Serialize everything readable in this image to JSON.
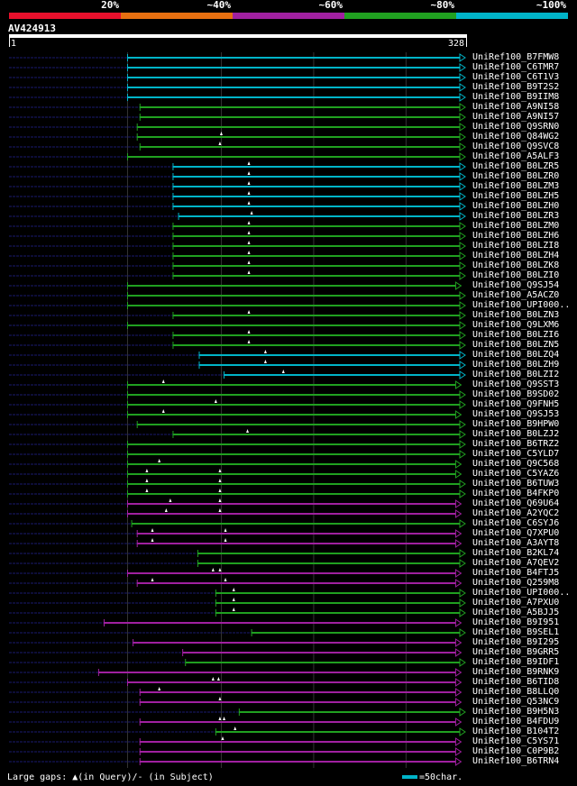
{
  "legend": {
    "segments": [
      {
        "label": "20%",
        "color": "#e8102c"
      },
      {
        "label": "~40%",
        "color": "#e87010"
      },
      {
        "label": "~60%",
        "color": "#a020a0"
      },
      {
        "label": "~80%",
        "color": "#20a020"
      },
      {
        "label": "~100%",
        "color": "#00b4c8"
      }
    ]
  },
  "query": {
    "name": "AV424913",
    "start_label": "1",
    "end_label": "328"
  },
  "footer": {
    "gaps_text": "Large gaps: ▲(in Query)/- (in Subject)",
    "scale_text": "=50char."
  },
  "chart_data": {
    "type": "alignment",
    "title": "AV424913",
    "xlim": [
      1,
      328
    ],
    "identity_classes": [
      "20%",
      "~40%",
      "~60%",
      "~80%",
      "~100%"
    ],
    "hits": [
      {
        "name": "UniRef100_B7FMW8",
        "start": 87,
        "end": 328,
        "identity": "~100%",
        "prefix_start": 1,
        "gaps": []
      },
      {
        "name": "UniRef100_C6TMR7",
        "start": 87,
        "end": 328,
        "identity": "~100%",
        "prefix_start": 1,
        "gaps": []
      },
      {
        "name": "UniRef100_C6T1V3",
        "start": 87,
        "end": 328,
        "identity": "~100%",
        "prefix_start": 1,
        "gaps": []
      },
      {
        "name": "UniRef100_B9T2S2",
        "start": 87,
        "end": 328,
        "identity": "~100%",
        "prefix_start": 1,
        "gaps": []
      },
      {
        "name": "UniRef100_B9IIM8",
        "start": 87,
        "end": 328,
        "identity": "~100%",
        "prefix_start": 1,
        "gaps": []
      },
      {
        "name": "UniRef100_A9NI58",
        "start": 96,
        "end": 328,
        "identity": "~80%",
        "prefix_start": 1,
        "gaps": []
      },
      {
        "name": "UniRef100_A9NI57",
        "start": 96,
        "end": 328,
        "identity": "~80%",
        "prefix_start": 1,
        "gaps": []
      },
      {
        "name": "UniRef100_Q9SRN0",
        "start": 94,
        "end": 328,
        "identity": "~80%",
        "prefix_start": 1,
        "gaps": []
      },
      {
        "name": "UniRef100_Q84WG2",
        "start": 94,
        "end": 328,
        "identity": "~80%",
        "prefix_start": 1,
        "gaps": [
          155
        ]
      },
      {
        "name": "UniRef100_Q9SVC8",
        "start": 96,
        "end": 328,
        "identity": "~80%",
        "prefix_start": 1,
        "gaps": [
          154
        ]
      },
      {
        "name": "UniRef100_A5ALF3",
        "start": 87,
        "end": 328,
        "identity": "~80%",
        "prefix_start": 1,
        "gaps": []
      },
      {
        "name": "UniRef100_B0LZR5",
        "start": 120,
        "end": 328,
        "identity": "~100%",
        "prefix_start": 1,
        "gaps": [
          175
        ]
      },
      {
        "name": "UniRef100_B0LZR0",
        "start": 120,
        "end": 328,
        "identity": "~100%",
        "prefix_start": 1,
        "gaps": [
          175
        ]
      },
      {
        "name": "UniRef100_B0LZM3",
        "start": 120,
        "end": 328,
        "identity": "~100%",
        "prefix_start": 1,
        "gaps": [
          175
        ]
      },
      {
        "name": "UniRef100_B0LZH5",
        "start": 120,
        "end": 328,
        "identity": "~100%",
        "prefix_start": 1,
        "gaps": [
          175
        ]
      },
      {
        "name": "UniRef100_B0LZH0",
        "start": 120,
        "end": 328,
        "identity": "~100%",
        "prefix_start": 1,
        "gaps": [
          175
        ]
      },
      {
        "name": "UniRef100_B0LZR3",
        "start": 124,
        "end": 328,
        "identity": "~100%",
        "prefix_start": 1,
        "gaps": [
          177
        ]
      },
      {
        "name": "UniRef100_B0LZM0",
        "start": 120,
        "end": 328,
        "identity": "~80%",
        "prefix_start": 1,
        "gaps": [
          175
        ]
      },
      {
        "name": "UniRef100_B0LZH6",
        "start": 120,
        "end": 328,
        "identity": "~80%",
        "prefix_start": 1,
        "gaps": [
          175
        ]
      },
      {
        "name": "UniRef100_B0LZI8",
        "start": 120,
        "end": 328,
        "identity": "~80%",
        "prefix_start": 1,
        "gaps": [
          175
        ]
      },
      {
        "name": "UniRef100_B0LZH4",
        "start": 120,
        "end": 328,
        "identity": "~80%",
        "prefix_start": 1,
        "gaps": [
          175
        ]
      },
      {
        "name": "UniRef100_B0LZK8",
        "start": 120,
        "end": 328,
        "identity": "~80%",
        "prefix_start": 1,
        "gaps": [
          175
        ]
      },
      {
        "name": "UniRef100_B0LZI0",
        "start": 120,
        "end": 328,
        "identity": "~80%",
        "prefix_start": 1,
        "gaps": [
          175
        ]
      },
      {
        "name": "UniRef100_Q9SJ54",
        "start": 87,
        "end": 325,
        "identity": "~80%",
        "prefix_start": 1,
        "gaps": []
      },
      {
        "name": "UniRef100_A5ACZ0",
        "start": 87,
        "end": 328,
        "identity": "~80%",
        "prefix_start": 1,
        "gaps": []
      },
      {
        "name": "UniRef100_UPI000..",
        "start": 87,
        "end": 328,
        "identity": "~80%",
        "prefix_start": 1,
        "gaps": []
      },
      {
        "name": "UniRef100_B0LZN3",
        "start": 120,
        "end": 328,
        "identity": "~80%",
        "prefix_start": 1,
        "gaps": [
          175
        ]
      },
      {
        "name": "UniRef100_Q9LXM6",
        "start": 87,
        "end": 328,
        "identity": "~80%",
        "prefix_start": 1,
        "gaps": []
      },
      {
        "name": "UniRef100_B0LZI6",
        "start": 120,
        "end": 328,
        "identity": "~80%",
        "prefix_start": 1,
        "gaps": [
          175
        ]
      },
      {
        "name": "UniRef100_B0LZN5",
        "start": 120,
        "end": 328,
        "identity": "~80%",
        "prefix_start": 1,
        "gaps": [
          175
        ]
      },
      {
        "name": "UniRef100_B0LZQ4",
        "start": 139,
        "end": 328,
        "identity": "~100%",
        "prefix_start": 1,
        "gaps": [
          187
        ]
      },
      {
        "name": "UniRef100_B0LZH9",
        "start": 139,
        "end": 328,
        "identity": "~100%",
        "prefix_start": 1,
        "gaps": [
          187
        ]
      },
      {
        "name": "UniRef100_B0LZI2",
        "start": 157,
        "end": 328,
        "identity": "~100%",
        "prefix_start": 1,
        "gaps": [
          200
        ]
      },
      {
        "name": "UniRef100_Q9SST3",
        "start": 87,
        "end": 325,
        "identity": "~80%",
        "prefix_start": 1,
        "gaps": [
          113
        ]
      },
      {
        "name": "UniRef100_B9SD02",
        "start": 87,
        "end": 328,
        "identity": "~80%",
        "prefix_start": 1,
        "gaps": []
      },
      {
        "name": "UniRef100_Q9FNH5",
        "start": 87,
        "end": 328,
        "identity": "~80%",
        "prefix_start": 1,
        "gaps": [
          151
        ]
      },
      {
        "name": "UniRef100_Q9SJ53",
        "start": 87,
        "end": 325,
        "identity": "~80%",
        "prefix_start": 1,
        "gaps": [
          113
        ]
      },
      {
        "name": "UniRef100_B9HPW0",
        "start": 94,
        "end": 328,
        "identity": "~80%",
        "prefix_start": 1,
        "gaps": []
      },
      {
        "name": "UniRef100_B0LZJ2",
        "start": 120,
        "end": 328,
        "identity": "~80%",
        "prefix_start": 1,
        "gaps": [
          174
        ]
      },
      {
        "name": "UniRef100_B6TRZ2",
        "start": 87,
        "end": 328,
        "identity": "~80%",
        "prefix_start": 1,
        "gaps": []
      },
      {
        "name": "UniRef100_C5YLD7",
        "start": 87,
        "end": 328,
        "identity": "~80%",
        "prefix_start": 1,
        "gaps": []
      },
      {
        "name": "UniRef100_Q9C568",
        "start": 87,
        "end": 325,
        "identity": "~80%",
        "prefix_start": 1,
        "gaps": [
          110
        ]
      },
      {
        "name": "UniRef100_C5YAZ6",
        "start": 87,
        "end": 325,
        "identity": "~80%",
        "prefix_start": 1,
        "gaps": [
          101,
          154
        ]
      },
      {
        "name": "UniRef100_B6TUW3",
        "start": 87,
        "end": 328,
        "identity": "~80%",
        "prefix_start": 1,
        "gaps": [
          101,
          154
        ]
      },
      {
        "name": "UniRef100_B4FKP0",
        "start": 87,
        "end": 328,
        "identity": "~80%",
        "prefix_start": 1,
        "gaps": [
          101,
          154
        ]
      },
      {
        "name": "UniRef100_Q69U64",
        "start": 87,
        "end": 325,
        "identity": "~60%",
        "prefix_start": 1,
        "gaps": [
          118,
          154
        ]
      },
      {
        "name": "UniRef100_A2YQC2",
        "start": 87,
        "end": 325,
        "identity": "~60%",
        "prefix_start": 1,
        "gaps": [
          115,
          154
        ]
      },
      {
        "name": "UniRef100_C6SYJ6",
        "start": 90,
        "end": 328,
        "identity": "~80%",
        "prefix_start": 1,
        "gaps": []
      },
      {
        "name": "UniRef100_Q7XPU0",
        "start": 94,
        "end": 325,
        "identity": "~60%",
        "prefix_start": 1,
        "gaps": [
          105,
          158
        ]
      },
      {
        "name": "UniRef100_A3AYT8",
        "start": 94,
        "end": 325,
        "identity": "~60%",
        "prefix_start": 1,
        "gaps": [
          105,
          158
        ]
      },
      {
        "name": "UniRef100_B2KL74",
        "start": 138,
        "end": 328,
        "identity": "~80%",
        "prefix_start": 1,
        "gaps": []
      },
      {
        "name": "UniRef100_A7QEV2",
        "start": 138,
        "end": 328,
        "identity": "~80%",
        "prefix_start": 1,
        "gaps": []
      },
      {
        "name": "UniRef100_B4FTJ5",
        "start": 87,
        "end": 325,
        "identity": "~60%",
        "prefix_start": 1,
        "gaps": [
          149,
          154
        ]
      },
      {
        "name": "UniRef100_Q259M8",
        "start": 94,
        "end": 325,
        "identity": "~60%",
        "prefix_start": 1,
        "gaps": [
          105,
          158
        ]
      },
      {
        "name": "UniRef100_UPI000..",
        "start": 151,
        "end": 328,
        "identity": "~80%",
        "prefix_start": 1,
        "gaps": [
          164
        ]
      },
      {
        "name": "UniRef100_A7PXU0",
        "start": 151,
        "end": 328,
        "identity": "~80%",
        "prefix_start": 1,
        "gaps": [
          164
        ]
      },
      {
        "name": "UniRef100_A5BJJ5",
        "start": 151,
        "end": 328,
        "identity": "~80%",
        "prefix_start": 1,
        "gaps": [
          164
        ]
      },
      {
        "name": "UniRef100_B9I951",
        "start": 70,
        "end": 325,
        "identity": "~60%",
        "prefix_start": 1,
        "gaps": []
      },
      {
        "name": "UniRef100_B9SEL1",
        "start": 177,
        "end": 328,
        "identity": "~80%",
        "prefix_start": 1,
        "gaps": []
      },
      {
        "name": "UniRef100_B9I295",
        "start": 91,
        "end": 325,
        "identity": "~60%",
        "prefix_start": 1,
        "gaps": []
      },
      {
        "name": "UniRef100_B9GRR5",
        "start": 127,
        "end": 325,
        "identity": "~60%",
        "prefix_start": 1,
        "gaps": []
      },
      {
        "name": "UniRef100_B9IDF1",
        "start": 129,
        "end": 328,
        "identity": "~80%",
        "prefix_start": 1,
        "gaps": []
      },
      {
        "name": "UniRef100_B9RNK9",
        "start": 66,
        "end": 325,
        "identity": "~60%",
        "prefix_start": 1,
        "gaps": []
      },
      {
        "name": "UniRef100_B6TID8",
        "start": 87,
        "end": 325,
        "identity": "~60%",
        "prefix_start": 1,
        "gaps": [
          149,
          153
        ]
      },
      {
        "name": "UniRef100_B8LLQ0",
        "start": 96,
        "end": 325,
        "identity": "~60%",
        "prefix_start": 1,
        "gaps": [
          110
        ]
      },
      {
        "name": "UniRef100_Q53NC9",
        "start": 96,
        "end": 325,
        "identity": "~60%",
        "prefix_start": 1,
        "gaps": [
          154
        ]
      },
      {
        "name": "UniRef100_B9H5N3",
        "start": 168,
        "end": 328,
        "identity": "~80%",
        "prefix_start": 1,
        "gaps": []
      },
      {
        "name": "UniRef100_B4FDU9",
        "start": 96,
        "end": 325,
        "identity": "~60%",
        "prefix_start": 1,
        "gaps": [
          154,
          157
        ]
      },
      {
        "name": "UniRef100_B104T2",
        "start": 151,
        "end": 328,
        "identity": "~80%",
        "prefix_start": 1,
        "gaps": [
          165
        ]
      },
      {
        "name": "UniRef100_C5YS71",
        "start": 96,
        "end": 325,
        "identity": "~60%",
        "prefix_start": 1,
        "gaps": [
          156
        ]
      },
      {
        "name": "UniRef100_C0P9B2",
        "start": 96,
        "end": 325,
        "identity": "~60%",
        "prefix_start": 1,
        "gaps": []
      },
      {
        "name": "UniRef100_B6TRN4",
        "start": 96,
        "end": 325,
        "identity": "~60%",
        "prefix_start": 1,
        "gaps": []
      }
    ]
  }
}
